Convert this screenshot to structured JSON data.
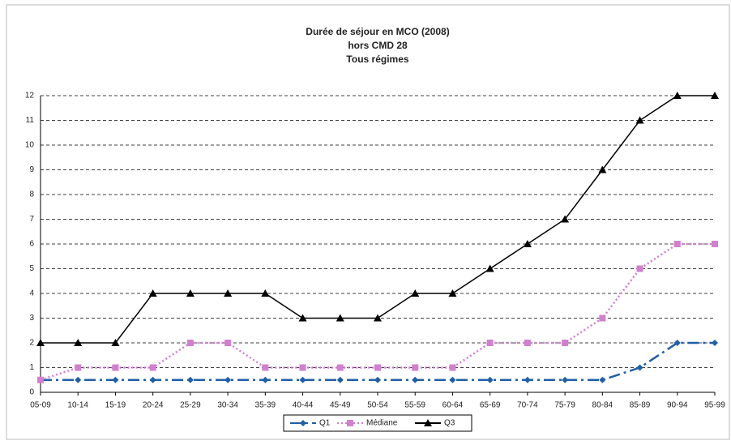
{
  "chart_data": {
    "type": "line",
    "title": [
      "Durée de séjour en MCO (2008)",
      "hors CMD 28",
      "Tous régimes"
    ],
    "categories": [
      "05-09",
      "10-14",
      "15-19",
      "20-24",
      "25-29",
      "30-34",
      "35-39",
      "40-44",
      "45-49",
      "50-54",
      "55-59",
      "60-64",
      "65-69",
      "70-74",
      "75-79",
      "80-84",
      "85-89",
      "90-94",
      "95-99"
    ],
    "series": [
      {
        "name": "Q1",
        "color": "#1f5fa8",
        "marker": "diamond",
        "dash": "14 5 3 5",
        "values": [
          0.5,
          0.5,
          0.5,
          0.5,
          0.5,
          0.5,
          0.5,
          0.5,
          0.5,
          0.5,
          0.5,
          0.5,
          0.5,
          0.5,
          0.5,
          0.5,
          1,
          2,
          2
        ]
      },
      {
        "name": "Médiane",
        "color": "#d27fcf",
        "marker": "square",
        "dash": "2 3",
        "values": [
          0.5,
          1,
          1,
          1,
          2,
          2,
          1,
          1,
          1,
          1,
          1,
          1,
          2,
          2,
          2,
          3,
          5,
          6,
          6
        ]
      },
      {
        "name": "Q3",
        "color": "#000000",
        "marker": "triangle",
        "dash": "none",
        "values": [
          2,
          2,
          2,
          4,
          4,
          4,
          4,
          3,
          3,
          3,
          4,
          4,
          5,
          6,
          7,
          9,
          11,
          12,
          12
        ]
      }
    ],
    "ylim": [
      0,
      12
    ],
    "yticks": [
      0,
      1,
      2,
      3,
      4,
      5,
      6,
      7,
      8,
      9,
      10,
      11,
      12
    ],
    "grid": true,
    "legend": "bottom"
  }
}
